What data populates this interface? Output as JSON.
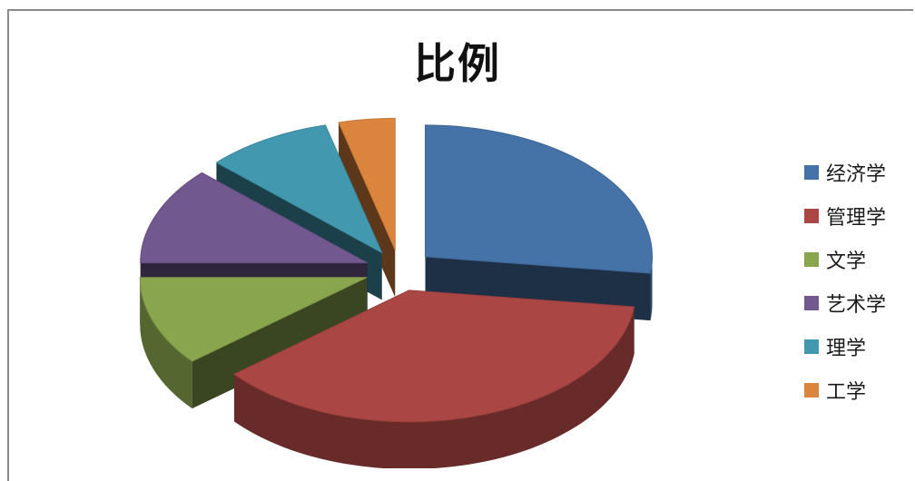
{
  "chart_data": {
    "type": "pie",
    "title": "比例",
    "categories": [
      "经济学",
      "管理学",
      "文学",
      "艺术学",
      "理学",
      "工学"
    ],
    "values": [
      27,
      37,
      11,
      12,
      9,
      4
    ],
    "colors": [
      "#4572A7",
      "#AA4643",
      "#89A54E",
      "#71588F",
      "#4198AF",
      "#DB843D"
    ],
    "exploded": true,
    "three_d": true,
    "legend_position": "right"
  }
}
